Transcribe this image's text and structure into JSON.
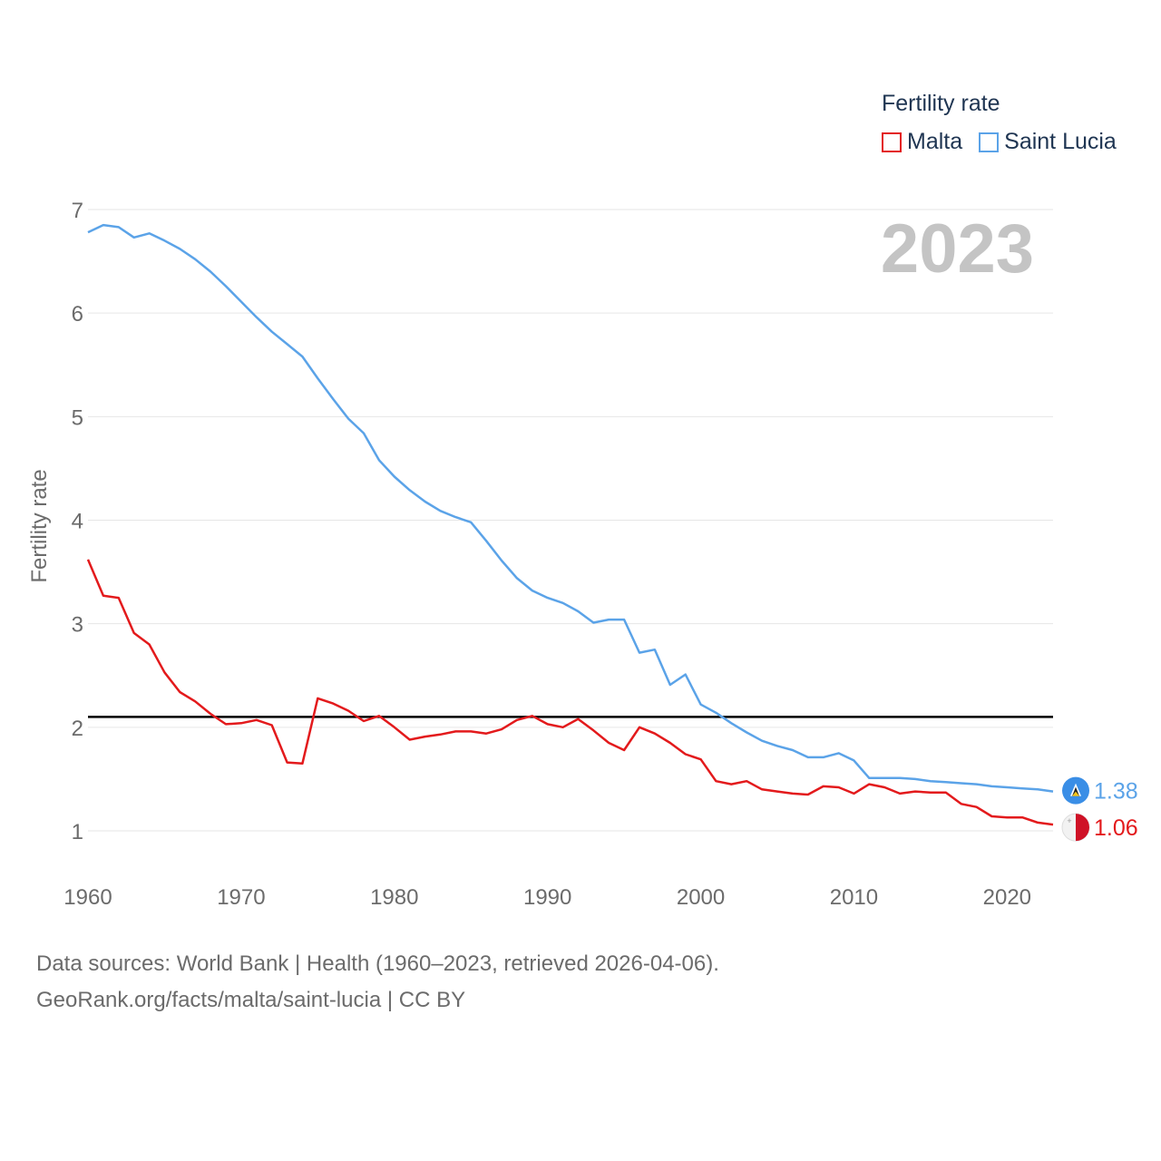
{
  "chart_data": {
    "type": "line",
    "title": "Fertility rate",
    "year_label": "2023",
    "xlabel": "",
    "ylabel": "Fertility rate",
    "xlim": [
      1960,
      2023
    ],
    "ylim": [
      0.5,
      7.3
    ],
    "yticks": [
      1,
      2,
      3,
      4,
      5,
      6,
      7
    ],
    "xticks": [
      1960,
      1970,
      1980,
      1990,
      2000,
      2010,
      2020
    ],
    "reference_line": 2.1,
    "x": [
      1960,
      1961,
      1962,
      1963,
      1964,
      1965,
      1966,
      1967,
      1968,
      1969,
      1970,
      1971,
      1972,
      1973,
      1974,
      1975,
      1976,
      1977,
      1978,
      1979,
      1980,
      1981,
      1982,
      1983,
      1984,
      1985,
      1986,
      1987,
      1988,
      1989,
      1990,
      1991,
      1992,
      1993,
      1994,
      1995,
      1996,
      1997,
      1998,
      1999,
      2000,
      2001,
      2002,
      2003,
      2004,
      2005,
      2006,
      2007,
      2008,
      2009,
      2010,
      2011,
      2012,
      2013,
      2014,
      2015,
      2016,
      2017,
      2018,
      2019,
      2020,
      2021,
      2022,
      2023
    ],
    "series": [
      {
        "name": "Malta",
        "color": "#e31a1c",
        "end_label": "1.06",
        "values": [
          3.62,
          3.27,
          3.25,
          2.91,
          2.8,
          2.53,
          2.34,
          2.25,
          2.13,
          2.03,
          2.04,
          2.07,
          2.02,
          1.66,
          1.65,
          2.28,
          2.23,
          2.16,
          2.06,
          2.11,
          2.0,
          1.88,
          1.91,
          1.93,
          1.96,
          1.96,
          1.94,
          1.98,
          2.07,
          2.11,
          2.03,
          2.0,
          2.08,
          1.97,
          1.85,
          1.78,
          2.0,
          1.94,
          1.85,
          1.74,
          1.69,
          1.48,
          1.45,
          1.48,
          1.4,
          1.38,
          1.36,
          1.35,
          1.43,
          1.42,
          1.36,
          1.45,
          1.42,
          1.36,
          1.38,
          1.37,
          1.37,
          1.26,
          1.23,
          1.14,
          1.13,
          1.13,
          1.08,
          1.06
        ]
      },
      {
        "name": "Saint Lucia",
        "color": "#5ba3e8",
        "end_label": "1.38",
        "values": [
          6.78,
          6.85,
          6.83,
          6.73,
          6.77,
          6.7,
          6.62,
          6.52,
          6.4,
          6.26,
          6.11,
          5.96,
          5.82,
          5.7,
          5.58,
          5.37,
          5.17,
          4.98,
          4.84,
          4.58,
          4.42,
          4.29,
          4.18,
          4.09,
          4.03,
          3.98,
          3.8,
          3.61,
          3.44,
          3.32,
          3.25,
          3.2,
          3.12,
          3.01,
          3.04,
          3.04,
          2.72,
          2.75,
          2.41,
          2.51,
          2.22,
          2.14,
          2.04,
          1.95,
          1.87,
          1.82,
          1.78,
          1.71,
          1.71,
          1.75,
          1.68,
          1.51,
          1.51,
          1.51,
          1.5,
          1.48,
          1.47,
          1.46,
          1.45,
          1.43,
          1.42,
          1.41,
          1.4,
          1.38
        ]
      }
    ],
    "legend_position": "top-right"
  },
  "footer": {
    "line1": "Data sources: World Bank | Health (1960–2023, retrieved 2026-04-06).",
    "line2": "GeoRank.org/facts/malta/saint-lucia | CC BY"
  }
}
